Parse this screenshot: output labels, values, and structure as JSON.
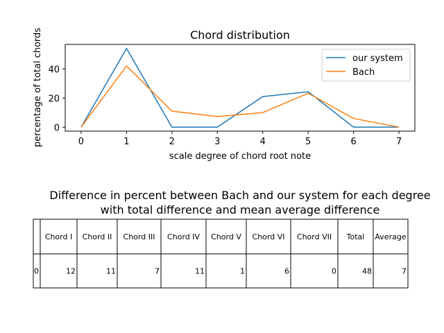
{
  "chart_data": [
    {
      "type": "line",
      "title": "Chord distribution",
      "xlabel": "scale degree of chord root note",
      "ylabel": "percentage of total chords",
      "x": [
        0,
        1,
        2,
        3,
        4,
        5,
        6,
        7
      ],
      "xlim": [
        -0.35,
        7.35
      ],
      "ylim": [
        -2.7,
        56.8
      ],
      "xticks": [
        "0",
        "1",
        "2",
        "3",
        "4",
        "5",
        "6",
        "7"
      ],
      "yticks": [
        0,
        20,
        40
      ],
      "grid": false,
      "legend_position": "top-right",
      "series": [
        {
          "name": "our system",
          "color": "#1f77b4",
          "values": [
            0,
            54,
            0,
            0,
            21,
            24.3,
            0,
            0
          ]
        },
        {
          "name": "Bach",
          "color": "#ff7f0e",
          "values": [
            0,
            42,
            11,
            7.3,
            10,
            23.3,
            6,
            0
          ]
        }
      ]
    },
    {
      "type": "table",
      "title_lines": [
        "Difference in percent between Bach and our system for each degree",
        "with total difference and mean average difference"
      ],
      "columns": [
        "",
        "Chord I",
        "Chord II",
        "Chord III",
        "Chord IV",
        "Chord V",
        "Chord VI",
        "Chord VII",
        "Total",
        "Average"
      ],
      "rows": [
        [
          "0",
          "12",
          "11",
          "7",
          "11",
          "1",
          "6",
          "0",
          "48",
          "7"
        ]
      ]
    }
  ]
}
